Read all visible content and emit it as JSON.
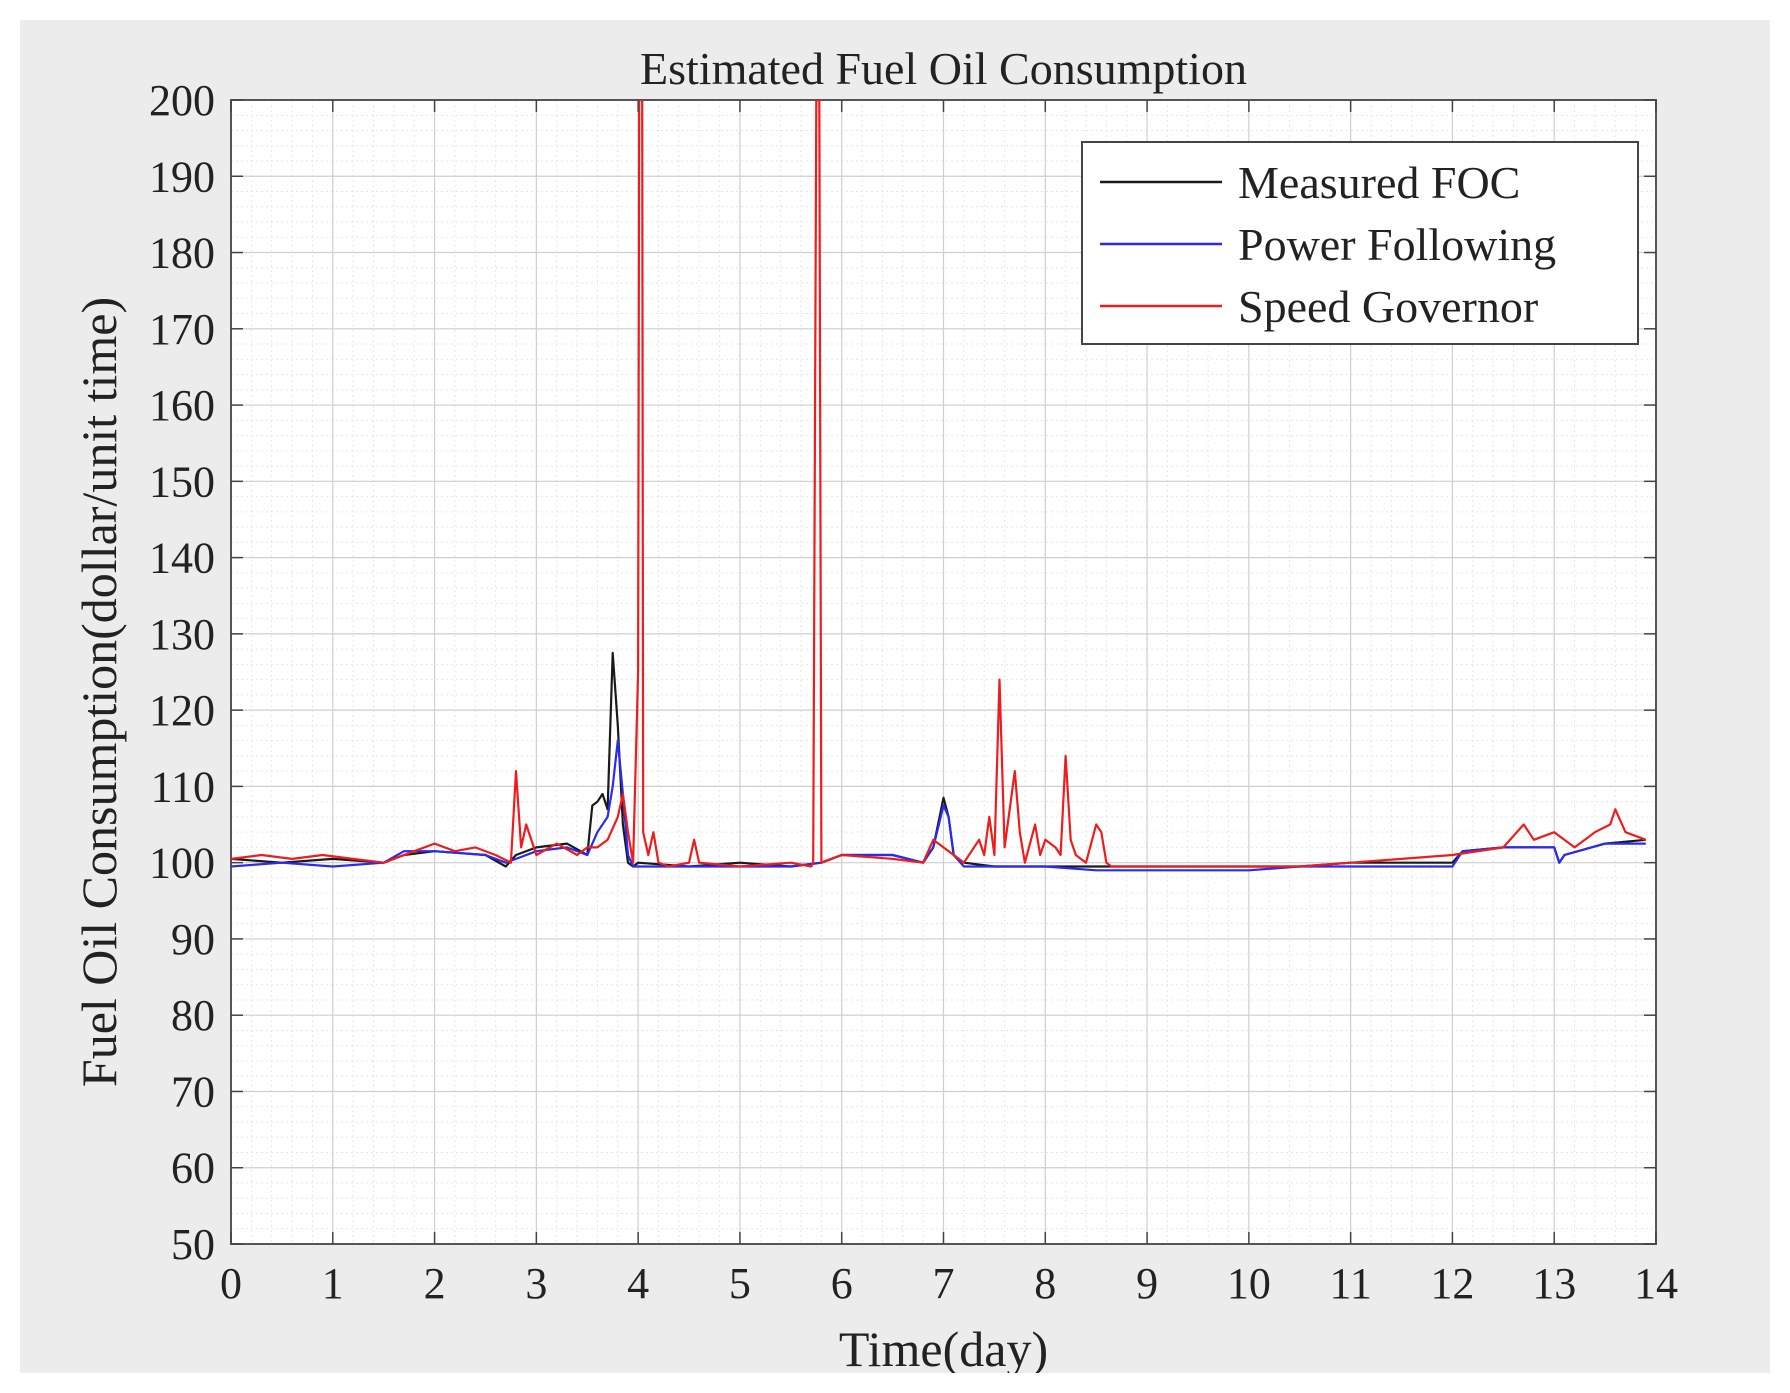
{
  "chart_data": {
    "type": "line",
    "title": "Estimated Fuel Oil Consumption",
    "xlabel": "Time(day)",
    "ylabel": "Fuel Oil Consumption(dollar/unit time)",
    "xlim": [
      0,
      14
    ],
    "ylim": [
      50,
      200
    ],
    "xticks": [
      "0",
      "1",
      "2",
      "3",
      "4",
      "5",
      "6",
      "7",
      "8",
      "9",
      "10",
      "11",
      "12",
      "13",
      "14"
    ],
    "yticks": [
      "50",
      "60",
      "70",
      "80",
      "90",
      "100",
      "110",
      "120",
      "130",
      "140",
      "150",
      "160",
      "170",
      "180",
      "190",
      "200"
    ],
    "grid": "major and minor",
    "legend_position": "top-right",
    "series": [
      {
        "name": "Measured FOC",
        "color": "#1a1a1a",
        "x": [
          0,
          0.5,
          1,
          1.5,
          1.7,
          2,
          2.5,
          2.7,
          2.8,
          3,
          3.3,
          3.5,
          3.55,
          3.6,
          3.65,
          3.7,
          3.75,
          3.8,
          3.85,
          3.9,
          3.95,
          4,
          4.5,
          5,
          5.5,
          5.8,
          6,
          6.5,
          6.8,
          6.9,
          7,
          7.05,
          7.1,
          7.2,
          7.5,
          8,
          8.5,
          9,
          9.5,
          10,
          10.5,
          11,
          11.5,
          12,
          12.1,
          12.5,
          13,
          13.05,
          13.1,
          13.5,
          13.9
        ],
        "values": [
          100.5,
          100,
          100.5,
          100,
          101,
          101.5,
          101,
          99.5,
          101,
          102,
          102.5,
          101,
          107.5,
          108,
          109,
          107,
          127.5,
          118,
          105,
          100,
          99.5,
          100,
          99.5,
          100,
          99.5,
          100,
          101,
          101,
          100,
          102,
          108.5,
          106,
          101,
          100,
          99.5,
          99.5,
          99.5,
          99.5,
          99.5,
          99.5,
          99.5,
          100,
          100,
          100,
          101.5,
          102,
          102,
          100,
          101,
          102.5,
          103
        ]
      },
      {
        "name": "Power Following",
        "color": "#2a2af0",
        "x": [
          0,
          0.5,
          1,
          1.5,
          1.7,
          2,
          2.5,
          2.7,
          2.8,
          3,
          3.3,
          3.5,
          3.6,
          3.7,
          3.75,
          3.8,
          3.85,
          3.9,
          3.95,
          4,
          4.5,
          5,
          5.5,
          5.8,
          6,
          6.5,
          6.8,
          6.9,
          7,
          7.05,
          7.1,
          7.2,
          7.5,
          8,
          8.5,
          9,
          9.5,
          10,
          10.5,
          11,
          11.5,
          12,
          12.1,
          12.5,
          13,
          13.05,
          13.1,
          13.5,
          13.9
        ],
        "values": [
          99.5,
          100,
          99.5,
          100,
          101.5,
          101.5,
          101,
          100,
          100.5,
          101.5,
          102,
          101,
          104,
          106,
          110,
          116,
          109,
          101,
          99.5,
          99.5,
          99.5,
          99.5,
          99.5,
          100,
          101,
          101,
          100,
          102,
          107.5,
          106,
          101,
          99.5,
          99.5,
          99.5,
          99,
          99,
          99,
          99,
          99.5,
          99.5,
          99.5,
          99.5,
          101.5,
          102,
          102,
          100,
          101,
          102.5,
          102.5
        ]
      },
      {
        "name": "Speed Governor",
        "color": "#ee1c1c",
        "x": [
          0,
          0.3,
          0.6,
          0.9,
          1.2,
          1.5,
          1.8,
          2,
          2.2,
          2.4,
          2.6,
          2.75,
          2.8,
          2.85,
          2.9,
          3,
          3.2,
          3.4,
          3.5,
          3.6,
          3.7,
          3.8,
          3.85,
          3.9,
          3.95,
          4,
          4.01,
          4.04,
          4.05,
          4.1,
          4.15,
          4.2,
          4.3,
          4.5,
          4.55,
          4.6,
          5,
          5.5,
          5.7,
          5.72,
          5.75,
          5.78,
          5.8,
          6,
          6.5,
          6.8,
          6.9,
          7,
          7.2,
          7.35,
          7.4,
          7.45,
          7.5,
          7.55,
          7.6,
          7.7,
          7.75,
          7.8,
          7.9,
          7.95,
          8,
          8.1,
          8.15,
          8.2,
          8.25,
          8.3,
          8.4,
          8.5,
          8.55,
          8.6,
          8.65,
          8.7,
          9,
          9.5,
          10,
          10.5,
          11,
          11.5,
          12,
          12.5,
          12.7,
          12.8,
          13,
          13.2,
          13.4,
          13.55,
          13.6,
          13.7,
          13.9
        ],
        "values": [
          100.5,
          101,
          100.5,
          101,
          100.5,
          100,
          101.5,
          102.5,
          101.5,
          102,
          101,
          100,
          112,
          102,
          105,
          101,
          102.5,
          101,
          102,
          102,
          103,
          106,
          109,
          104,
          100,
          125,
          200,
          200,
          104,
          101,
          104,
          100,
          99.5,
          100,
          103,
          100,
          99.5,
          100,
          99.5,
          100,
          200,
          200,
          100,
          101,
          100.5,
          100,
          103,
          102,
          100,
          103,
          101,
          106,
          101,
          124,
          102,
          112,
          104,
          100,
          105,
          101,
          103,
          102,
          101,
          114,
          103,
          101,
          100,
          105,
          104,
          100,
          99.5,
          99.5,
          99.5,
          99.5,
          99.5,
          99.5,
          100,
          100.5,
          101,
          102,
          105,
          103,
          104,
          102,
          104,
          105,
          107,
          104,
          103
        ]
      }
    ]
  }
}
